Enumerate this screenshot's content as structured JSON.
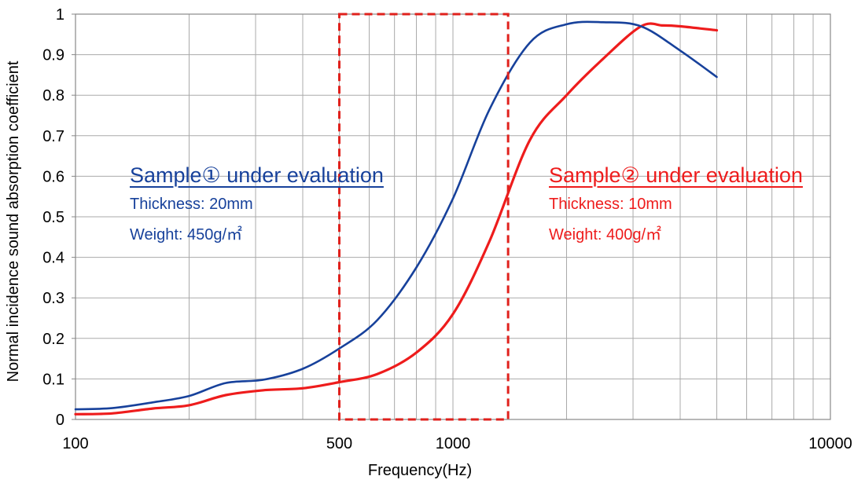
{
  "chart_data": {
    "type": "line",
    "title": "",
    "xlabel": "Frequency(Hz)",
    "ylabel": "Normal incidence sound absorption coefficient",
    "x_scale": "log",
    "xlim": [
      100,
      10000
    ],
    "ylim": [
      0,
      1
    ],
    "x_tick_labels": [
      "100",
      "500",
      "1000",
      "10000"
    ],
    "y_tick_labels": [
      "0",
      "0.1",
      "0.2",
      "0.3",
      "0.4",
      "0.5",
      "0.6",
      "0.7",
      "0.8",
      "0.9",
      "1"
    ],
    "grid": true,
    "series": [
      {
        "color": "#17419b",
        "x": [
          100,
          125,
          160,
          200,
          250,
          315,
          400,
          500,
          630,
          800,
          1000,
          1250,
          1600,
          2000,
          2500,
          3150,
          4000,
          5000
        ],
        "y": [
          0.025,
          0.028,
          0.042,
          0.058,
          0.09,
          0.098,
          0.125,
          0.175,
          0.245,
          0.375,
          0.545,
          0.765,
          0.93,
          0.975,
          0.98,
          0.97,
          0.91,
          0.845
        ]
      },
      {
        "color": "#ee1c1c",
        "x": [
          100,
          125,
          160,
          200,
          250,
          315,
          400,
          500,
          630,
          800,
          1000,
          1250,
          1600,
          2000,
          2500,
          3150,
          3600,
          4000,
          5000
        ],
        "y": [
          0.013,
          0.015,
          0.027,
          0.035,
          0.06,
          0.072,
          0.077,
          0.092,
          0.112,
          0.165,
          0.26,
          0.44,
          0.69,
          0.8,
          0.89,
          0.97,
          0.972,
          0.97,
          0.96
        ]
      }
    ],
    "highlight_region": {
      "x": [
        500,
        1400
      ],
      "y": [
        0,
        1
      ],
      "color": "#e0211c",
      "style": "dashed"
    },
    "annotations": [
      {
        "color": "#17419b",
        "title": "Sample① under evaluation",
        "lines": [
          "Thickness: 20mm",
          "Weight: 450g/㎡"
        ]
      },
      {
        "color": "#ee1c1c",
        "title": "Sample② under evaluation",
        "lines": [
          "Thickness: 10mm",
          "Weight: 400g/㎡"
        ]
      }
    ]
  }
}
